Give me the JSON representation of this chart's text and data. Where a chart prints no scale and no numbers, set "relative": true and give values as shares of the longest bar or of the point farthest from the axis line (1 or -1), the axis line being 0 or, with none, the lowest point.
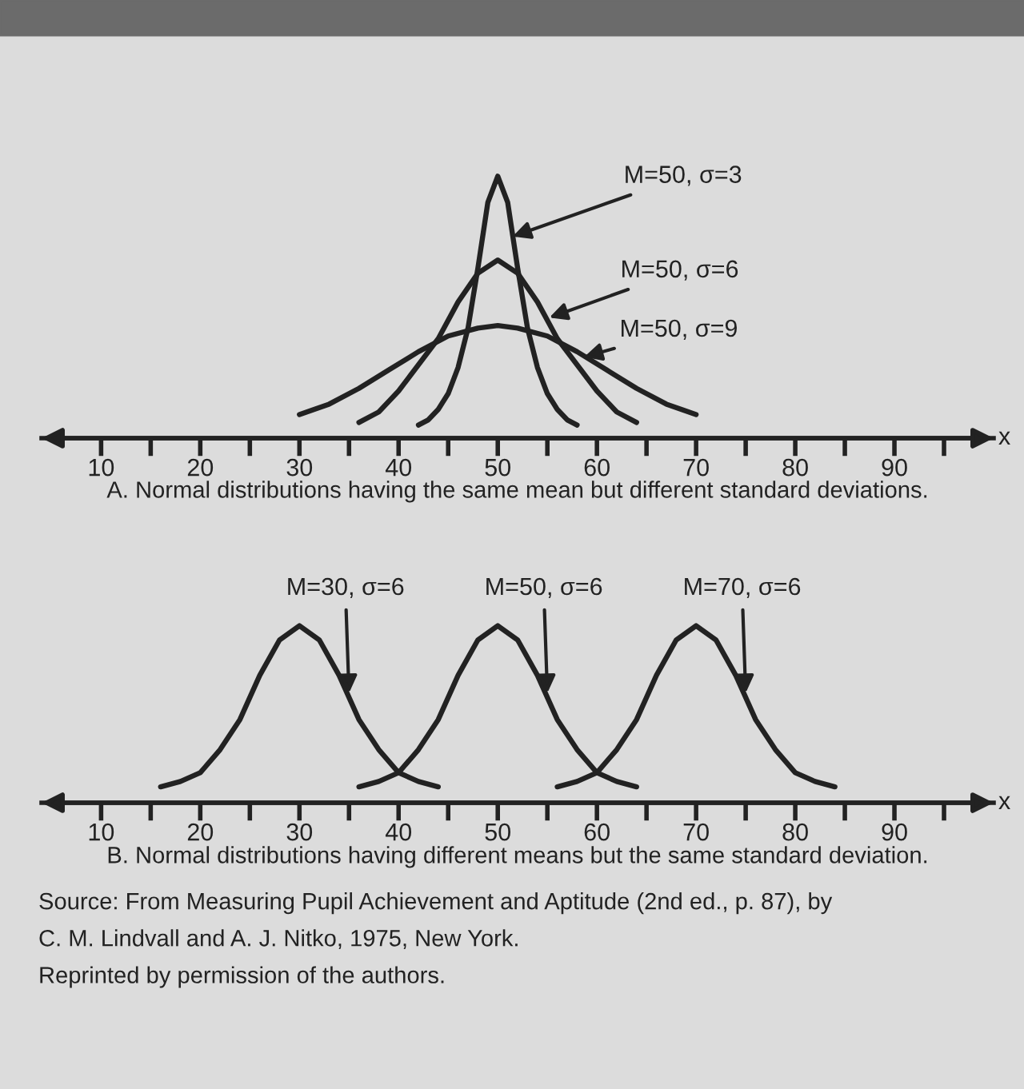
{
  "chart_data": [
    {
      "type": "line",
      "relative": true,
      "xlabel": "x",
      "legend": false,
      "grid": false,
      "marker": "none",
      "line_style": "solid",
      "xlim": [
        4,
        100
      ],
      "xticks": [
        10,
        {
          "value": 15,
          "label": null
        },
        20,
        {
          "value": 25,
          "label": null
        },
        30,
        {
          "value": 35,
          "label": null
        },
        40,
        {
          "value": 45,
          "label": null
        },
        50,
        {
          "value": 55,
          "label": null
        },
        60,
        {
          "value": 65,
          "label": null
        },
        70,
        {
          "value": 75,
          "label": null
        },
        80,
        {
          "value": 85,
          "label": null
        },
        90,
        {
          "value": 95,
          "label": null
        }
      ],
      "series": [
        {
          "color": "#222222",
          "x": [
            42,
            43,
            44,
            45,
            46,
            47,
            48,
            49,
            50,
            51,
            52,
            53,
            54,
            55,
            56,
            57,
            58
          ],
          "values": [
            0.05,
            0.07,
            0.11,
            0.17,
            0.27,
            0.42,
            0.65,
            0.9,
            1.0,
            0.9,
            0.65,
            0.42,
            0.27,
            0.17,
            0.11,
            0.07,
            0.05
          ]
        },
        {
          "color": "#222222",
          "x": [
            36,
            38,
            40,
            42,
            44,
            46,
            48,
            50,
            52,
            54,
            56,
            58,
            60,
            62,
            64
          ],
          "values": [
            0.06,
            0.1,
            0.18,
            0.28,
            0.38,
            0.52,
            0.63,
            0.68,
            0.63,
            0.52,
            0.38,
            0.28,
            0.18,
            0.1,
            0.06
          ]
        },
        {
          "color": "#222222",
          "x": [
            30,
            33,
            36,
            39,
            42,
            45,
            48,
            50,
            52,
            55,
            58,
            61,
            64,
            67,
            70
          ],
          "values": [
            0.09,
            0.13,
            0.19,
            0.26,
            0.33,
            0.39,
            0.42,
            0.43,
            0.42,
            0.39,
            0.33,
            0.26,
            0.19,
            0.13,
            0.09
          ]
        }
      ],
      "annotations": [
        {
          "text": "M=50, σ=3",
          "x": 51.5,
          "y": 0.77
        },
        {
          "text": "M=50, σ=6",
          "x": 55.2,
          "y": 0.46
        },
        {
          "text": "M=50, σ=9",
          "x": 58.7,
          "y": 0.31
        },
        "A. Normal distributions having the same mean but different standard deviations."
      ]
    },
    {
      "type": "line",
      "relative": true,
      "xlabel": "x",
      "legend": false,
      "grid": false,
      "marker": "none",
      "line_style": "solid",
      "xlim": [
        4,
        100
      ],
      "xticks": [
        10,
        {
          "value": 15,
          "label": null
        },
        20,
        {
          "value": 25,
          "label": null
        },
        30,
        {
          "value": 35,
          "label": null
        },
        40,
        {
          "value": 45,
          "label": null
        },
        50,
        {
          "value": 55,
          "label": null
        },
        60,
        {
          "value": 65,
          "label": null
        },
        70,
        {
          "value": 75,
          "label": null
        },
        80,
        {
          "value": 85,
          "label": null
        },
        90,
        {
          "value": 95,
          "label": null
        }
      ],
      "series": [
        {
          "color": "#222222",
          "x": [
            16,
            18,
            20,
            22,
            24,
            26,
            28,
            30,
            32,
            34,
            36,
            38,
            40,
            42,
            44
          ],
          "values": [
            0.09,
            0.12,
            0.17,
            0.3,
            0.47,
            0.72,
            0.92,
            1.0,
            0.92,
            0.72,
            0.47,
            0.3,
            0.17,
            0.12,
            0.09
          ]
        },
        {
          "color": "#222222",
          "x": [
            36,
            38,
            40,
            42,
            44,
            46,
            48,
            50,
            52,
            54,
            56,
            58,
            60,
            62,
            64
          ],
          "values": [
            0.09,
            0.12,
            0.17,
            0.3,
            0.47,
            0.72,
            0.92,
            1.0,
            0.92,
            0.72,
            0.47,
            0.3,
            0.17,
            0.12,
            0.09
          ]
        },
        {
          "color": "#222222",
          "x": [
            56,
            58,
            60,
            62,
            64,
            66,
            68,
            70,
            72,
            74,
            76,
            78,
            80,
            82,
            84
          ],
          "values": [
            0.09,
            0.12,
            0.17,
            0.3,
            0.47,
            0.72,
            0.92,
            1.0,
            0.92,
            0.72,
            0.47,
            0.3,
            0.17,
            0.12,
            0.09
          ]
        }
      ],
      "annotations": [
        {
          "text": "M=30, σ=6",
          "x": 35,
          "y": 0.62
        },
        {
          "text": "M=50, σ=6",
          "x": 55,
          "y": 0.62
        },
        {
          "text": "M=70, σ=6",
          "x": 75,
          "y": 0.62
        },
        "B. Normal distributions having different means but the same standard deviation.",
        "Source: From Measuring Pupil Achievement and Aptitude (2nd ed., p. 87), by\nC. M. Lindvall and A. J. Nitko, 1975, New York.\nReprinted by permission of the authors."
      ]
    }
  ]
}
